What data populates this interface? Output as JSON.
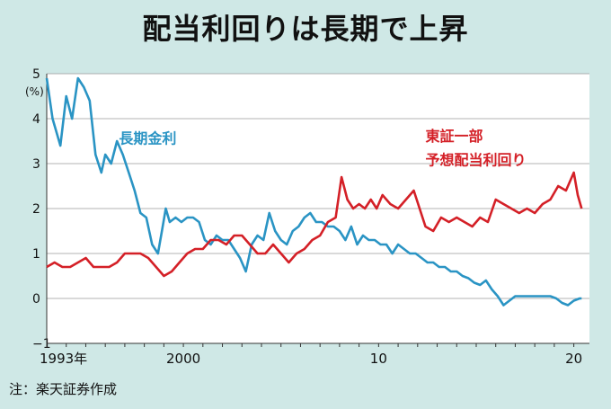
{
  "title": "配当利回りは長期で上昇",
  "note": "注：楽天証券作成",
  "chart_data": {
    "type": "line",
    "title": "配当利回りは長期で上昇",
    "ylabel": "(%)",
    "xlabel": "",
    "xlim": [
      1993,
      2020.8
    ],
    "ylim": [
      -1,
      5
    ],
    "yticks": [
      -1,
      0,
      1,
      2,
      3,
      4,
      5
    ],
    "ytick_labels": [
      "−1",
      "0",
      "1",
      "2",
      "3",
      "4",
      "5"
    ],
    "xticks": [
      1993,
      2000,
      2010,
      2020
    ],
    "xtick_labels": [
      "1993年",
      "2000",
      "10",
      "20"
    ],
    "grid": true,
    "series": [
      {
        "name": "長期金利",
        "color": "#2a94c4",
        "x": [
          1993.0,
          1993.3,
          1993.7,
          1994.0,
          1994.3,
          1994.6,
          1994.9,
          1995.2,
          1995.5,
          1995.8,
          1996.0,
          1996.3,
          1996.6,
          1996.9,
          1997.2,
          1997.5,
          1997.8,
          1998.1,
          1998.4,
          1998.7,
          1998.9,
          1999.1,
          1999.3,
          1999.6,
          1999.9,
          2000.2,
          2000.5,
          2000.8,
          2001.1,
          2001.4,
          2001.7,
          2002.0,
          2002.3,
          2002.6,
          2002.9,
          2003.2,
          2003.5,
          2003.8,
          2004.1,
          2004.4,
          2004.7,
          2005.0,
          2005.3,
          2005.6,
          2005.9,
          2006.2,
          2006.5,
          2006.8,
          2007.1,
          2007.4,
          2007.7,
          2008.0,
          2008.3,
          2008.6,
          2008.9,
          2009.2,
          2009.5,
          2009.8,
          2010.1,
          2010.4,
          2010.7,
          2011.0,
          2011.3,
          2011.6,
          2011.9,
          2012.2,
          2012.5,
          2012.8,
          2013.1,
          2013.4,
          2013.7,
          2014.0,
          2014.3,
          2014.6,
          2014.9,
          2015.2,
          2015.5,
          2015.8,
          2016.1,
          2016.4,
          2016.7,
          2017.0,
          2017.3,
          2017.6,
          2017.9,
          2018.2,
          2018.5,
          2018.8,
          2019.1,
          2019.4,
          2019.7,
          2020.0,
          2020.3,
          2020.4
        ],
        "values": [
          4.9,
          4.0,
          3.4,
          4.5,
          4.0,
          4.9,
          4.7,
          4.4,
          3.2,
          2.8,
          3.2,
          3.0,
          3.5,
          3.2,
          2.8,
          2.4,
          1.9,
          1.8,
          1.2,
          1.0,
          1.5,
          2.0,
          1.7,
          1.8,
          1.7,
          1.8,
          1.8,
          1.7,
          1.3,
          1.2,
          1.4,
          1.3,
          1.3,
          1.1,
          0.9,
          0.6,
          1.2,
          1.4,
          1.3,
          1.9,
          1.5,
          1.3,
          1.2,
          1.5,
          1.6,
          1.8,
          1.9,
          1.7,
          1.7,
          1.6,
          1.6,
          1.5,
          1.3,
          1.6,
          1.2,
          1.4,
          1.3,
          1.3,
          1.2,
          1.2,
          1.0,
          1.2,
          1.1,
          1.0,
          1.0,
          0.9,
          0.8,
          0.8,
          0.7,
          0.7,
          0.6,
          0.6,
          0.5,
          0.45,
          0.35,
          0.3,
          0.4,
          0.2,
          0.05,
          -0.15,
          -0.05,
          0.05,
          0.05,
          0.05,
          0.05,
          0.05,
          0.05,
          0.05,
          0.0,
          -0.1,
          -0.15,
          -0.05,
          0.0,
          0.0
        ]
      },
      {
        "name": "東証一部 予想配当利回り",
        "color": "#d42027",
        "x": [
          1993.0,
          1993.4,
          1993.8,
          1994.2,
          1994.6,
          1995.0,
          1995.4,
          1995.8,
          1996.2,
          1996.6,
          1997.0,
          1997.4,
          1997.8,
          1998.2,
          1998.6,
          1999.0,
          1999.4,
          1999.8,
          2000.2,
          2000.6,
          2001.0,
          2001.4,
          2001.8,
          2002.2,
          2002.6,
          2003.0,
          2003.4,
          2003.8,
          2004.2,
          2004.6,
          2005.0,
          2005.4,
          2005.8,
          2006.2,
          2006.6,
          2007.0,
          2007.4,
          2007.8,
          2008.1,
          2008.4,
          2008.7,
          2009.0,
          2009.3,
          2009.6,
          2009.9,
          2010.2,
          2010.6,
          2011.0,
          2011.4,
          2011.8,
          2012.1,
          2012.4,
          2012.8,
          2013.2,
          2013.6,
          2014.0,
          2014.4,
          2014.8,
          2015.2,
          2015.6,
          2016.0,
          2016.4,
          2016.8,
          2017.2,
          2017.6,
          2018.0,
          2018.4,
          2018.8,
          2019.2,
          2019.6,
          2020.0,
          2020.2,
          2020.4
        ],
        "values": [
          0.7,
          0.8,
          0.7,
          0.7,
          0.8,
          0.9,
          0.7,
          0.7,
          0.7,
          0.8,
          1.0,
          1.0,
          1.0,
          0.9,
          0.7,
          0.5,
          0.6,
          0.8,
          1.0,
          1.1,
          1.1,
          1.3,
          1.3,
          1.2,
          1.4,
          1.4,
          1.2,
          1.0,
          1.0,
          1.2,
          1.0,
          0.8,
          1.0,
          1.1,
          1.3,
          1.4,
          1.7,
          1.8,
          2.7,
          2.2,
          2.0,
          2.1,
          2.0,
          2.2,
          2.0,
          2.3,
          2.1,
          2.0,
          2.2,
          2.4,
          2.0,
          1.6,
          1.5,
          1.8,
          1.7,
          1.8,
          1.7,
          1.6,
          1.8,
          1.7,
          2.2,
          2.1,
          2.0,
          1.9,
          2.0,
          1.9,
          2.1,
          2.2,
          2.5,
          2.4,
          2.8,
          2.3,
          2.0
        ]
      }
    ],
    "annotations": [
      {
        "text": "長期金利",
        "series": "長期金利",
        "x": 1996.7,
        "y": 3.45
      },
      {
        "text": "東証一部",
        "series": "東証一部 予想配当利回り",
        "x": 2012.4,
        "y": 3.5
      },
      {
        "text": "予想配当利回り",
        "series": "東証一部 予想配当利回り",
        "x": 2012.4,
        "y": 2.97
      }
    ]
  }
}
